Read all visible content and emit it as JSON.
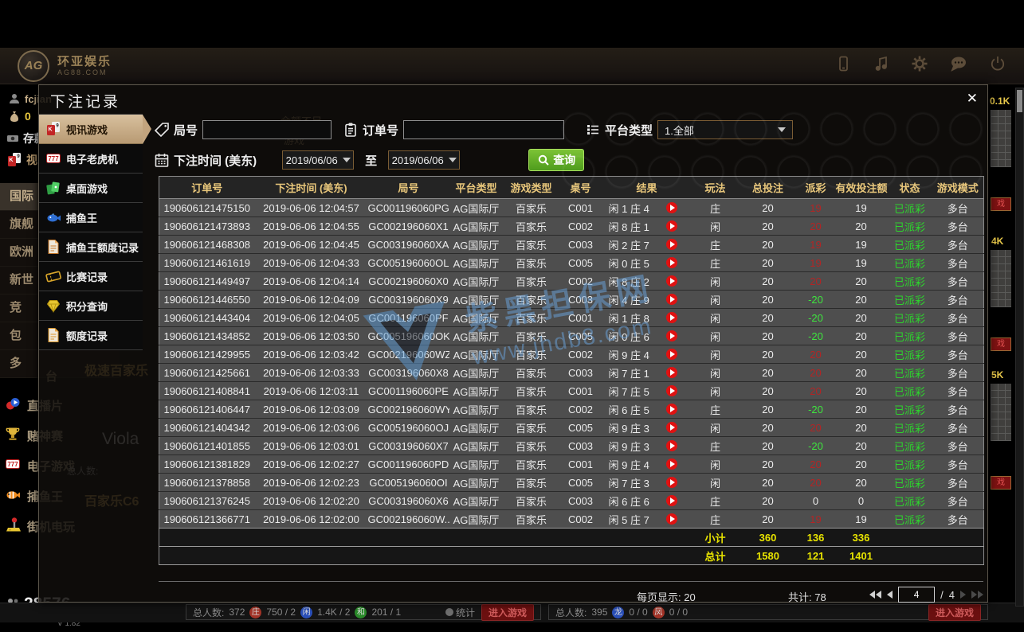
{
  "header": {
    "brand": {
      "monogram": "AG",
      "title": "环亚娱乐",
      "subtitle": "AG88.COM"
    },
    "icons": [
      "phone-icon",
      "music-icon",
      "gear-icon",
      "chat-icon",
      "power-icon"
    ]
  },
  "lobby": {
    "user": {
      "name": "fcjian",
      "balance": "0",
      "deposit": "存款",
      "video_tab": "视"
    },
    "halls": [
      "国际",
      "旗舰",
      "欧洲",
      "新世",
      "竞",
      "包",
      "多"
    ],
    "menus": [
      {
        "icon": "live-icon",
        "label": "直播片"
      },
      {
        "icon": "trophy-icon",
        "label": "赌神赛"
      },
      {
        "icon": "slots-icon",
        "label": "电子游戏"
      },
      {
        "icon": "fish-icon",
        "label": "捕鱼王"
      },
      {
        "icon": "arcade-icon",
        "label": "街机电玩"
      }
    ],
    "online_count": "28576",
    "version": "V 1.82",
    "ghosts": [
      "余额不足",
      "游戏",
      "极速百家乐",
      "台",
      "Viola",
      "总人数:",
      "百家乐C6"
    ],
    "bottom_left": {
      "players_label": "总人数:",
      "players": "372",
      "b1": "庄",
      "v1": "750 / 2",
      "b2": "闲",
      "v2": "1.4K / 2",
      "b3": "和",
      "v3": "201 / 1",
      "stats_label": "统计",
      "enter_label": "进入游戏"
    },
    "bottom_right": {
      "players_label": "总人数:",
      "players": "395",
      "b1": "龙",
      "v1": "0 / 0",
      "b2": "凤",
      "v2": "0 / 0",
      "enter_label": "进入游戏"
    },
    "right_edge": {
      "fragments": [
        "0.1K",
        "4K",
        "5K"
      ],
      "chip": "戏"
    }
  },
  "dialog": {
    "title": "下注记录",
    "close": "✕",
    "sidebar": [
      {
        "icon": "cards-icon",
        "label": "视讯游戏",
        "selected": true
      },
      {
        "icon": "slot777-icon",
        "label": "电子老虎机",
        "selected": false
      },
      {
        "icon": "tablegames-icon",
        "label": "桌面游戏",
        "selected": false
      },
      {
        "icon": "fishking-icon",
        "label": "捕鱼王",
        "selected": false
      },
      {
        "icon": "fishdoc-icon",
        "label": "捕鱼王额度记录",
        "selected": false
      },
      {
        "icon": "ticket-icon",
        "label": "比赛记录",
        "selected": false
      },
      {
        "icon": "gem-icon",
        "label": "积分查询",
        "selected": false
      },
      {
        "icon": "quotadoc-icon",
        "label": "额度记录",
        "selected": false
      }
    ],
    "filters": {
      "round_label": "局号",
      "order_label": "订单号",
      "platform_label": "平台类型",
      "platform_value": "1.全部",
      "time_label": "下注时间 (美东)",
      "date_from": "2019/06/06",
      "date_to": "2019/06/06",
      "to_label": "至",
      "search_label": "查询"
    },
    "table": {
      "headers": [
        "订单号",
        "下注时间 (美东)",
        "局号",
        "平台类型",
        "游戏类型",
        "桌号",
        "结果",
        "玩法",
        "总投注",
        "派彩",
        "有效投注额",
        "状态",
        "游戏模式"
      ],
      "rows": [
        [
          "190606121475150",
          "2019-06-06 12:04:57",
          "GC001196060PG",
          "AG国际厅",
          "百家乐",
          "C001",
          "闲 1 庄 4",
          "庄",
          "20",
          "19",
          "19",
          "已派彩",
          "多台"
        ],
        [
          "190606121473893",
          "2019-06-06 12:04:55",
          "GC002196060X1",
          "AG国际厅",
          "百家乐",
          "C002",
          "闲 8 庄 1",
          "闲",
          "20",
          "20",
          "20",
          "已派彩",
          "多台"
        ],
        [
          "190606121468308",
          "2019-06-06 12:04:45",
          "GC003196060XA",
          "AG国际厅",
          "百家乐",
          "C003",
          "闲 2 庄 7",
          "庄",
          "20",
          "19",
          "19",
          "已派彩",
          "多台"
        ],
        [
          "190606121461619",
          "2019-06-06 12:04:33",
          "GC005196060OL",
          "AG国际厅",
          "百家乐",
          "C005",
          "闲 0 庄 5",
          "庄",
          "20",
          "19",
          "19",
          "已派彩",
          "多台"
        ],
        [
          "190606121449497",
          "2019-06-06 12:04:14",
          "GC002196060X0",
          "AG国际厅",
          "百家乐",
          "C002",
          "闲 8 庄 2",
          "闲",
          "20",
          "20",
          "20",
          "已派彩",
          "多台"
        ],
        [
          "190606121446550",
          "2019-06-06 12:04:09",
          "GC003196060X9",
          "AG国际厅",
          "百家乐",
          "C003",
          "闲 4 庄 9",
          "闲",
          "20",
          "-20",
          "20",
          "已派彩",
          "多台"
        ],
        [
          "190606121443404",
          "2019-06-06 12:04:05",
          "GC001196060PF",
          "AG国际厅",
          "百家乐",
          "C001",
          "闲 1 庄 8",
          "闲",
          "20",
          "-20",
          "20",
          "已派彩",
          "多台"
        ],
        [
          "190606121434852",
          "2019-06-06 12:03:50",
          "GC005196060OK",
          "AG国际厅",
          "百家乐",
          "C005",
          "闲 0 庄 6",
          "闲",
          "20",
          "-20",
          "20",
          "已派彩",
          "多台"
        ],
        [
          "190606121429955",
          "2019-06-06 12:03:42",
          "GC002196060WZ",
          "AG国际厅",
          "百家乐",
          "C002",
          "闲 9 庄 4",
          "闲",
          "20",
          "20",
          "20",
          "已派彩",
          "多台"
        ],
        [
          "190606121425661",
          "2019-06-06 12:03:33",
          "GC003196060X8",
          "AG国际厅",
          "百家乐",
          "C003",
          "闲 7 庄 1",
          "闲",
          "20",
          "20",
          "20",
          "已派彩",
          "多台"
        ],
        [
          "190606121408841",
          "2019-06-06 12:03:11",
          "GC001196060PE",
          "AG国际厅",
          "百家乐",
          "C001",
          "闲 7 庄 5",
          "闲",
          "20",
          "20",
          "20",
          "已派彩",
          "多台"
        ],
        [
          "190606121406447",
          "2019-06-06 12:03:09",
          "GC002196060WY",
          "AG国际厅",
          "百家乐",
          "C002",
          "闲 6 庄 5",
          "庄",
          "20",
          "-20",
          "20",
          "已派彩",
          "多台"
        ],
        [
          "190606121404342",
          "2019-06-06 12:03:06",
          "GC005196060OJ",
          "AG国际厅",
          "百家乐",
          "C005",
          "闲 9 庄 3",
          "闲",
          "20",
          "20",
          "20",
          "已派彩",
          "多台"
        ],
        [
          "190606121401855",
          "2019-06-06 12:03:01",
          "GC003196060X7",
          "AG国际厅",
          "百家乐",
          "C003",
          "闲 9 庄 3",
          "庄",
          "20",
          "-20",
          "20",
          "已派彩",
          "多台"
        ],
        [
          "190606121381829",
          "2019-06-06 12:02:27",
          "GC001196060PD",
          "AG国际厅",
          "百家乐",
          "C001",
          "闲 9 庄 4",
          "闲",
          "20",
          "20",
          "20",
          "已派彩",
          "多台"
        ],
        [
          "190606121378858",
          "2019-06-06 12:02:23",
          "GC005196060OI",
          "AG国际厅",
          "百家乐",
          "C005",
          "闲 7 庄 3",
          "闲",
          "20",
          "20",
          "20",
          "已派彩",
          "多台"
        ],
        [
          "190606121376245",
          "2019-06-06 12:02:20",
          "GC003196060X6",
          "AG国际厅",
          "百家乐",
          "C003",
          "闲 6 庄 6",
          "庄",
          "20",
          "0",
          "0",
          "已派彩",
          "多台"
        ],
        [
          "190606121366771",
          "2019-06-06 12:02:00",
          "GC002196060W...",
          "AG国际厅",
          "百家乐",
          "C002",
          "闲 5 庄 7",
          "庄",
          "20",
          "19",
          "19",
          "已派彩",
          "多台"
        ]
      ],
      "subtotal_label": "小计",
      "subtotal": [
        "360",
        "136",
        "336"
      ],
      "total_label": "总计",
      "total": [
        "1580",
        "121",
        "1401"
      ]
    },
    "pagination": {
      "per_page": "每页显示: 20",
      "total_count": "共计: 78",
      "page": "4",
      "sep": "/",
      "pages": "4"
    }
  },
  "watermark": {
    "line1": "紫黑担保网",
    "line2": "www.jhdb8.com"
  },
  "colors": {
    "accent_gold": "#e9c77b",
    "status_green": "#2dd42d",
    "payout_pos": "#b22525",
    "payout_neg": "#3ee63e",
    "total_yellow": "#e8e400",
    "search_green": "#5fb52a",
    "selected_tan": "#c9ad8a",
    "play_red": "#e01212"
  }
}
